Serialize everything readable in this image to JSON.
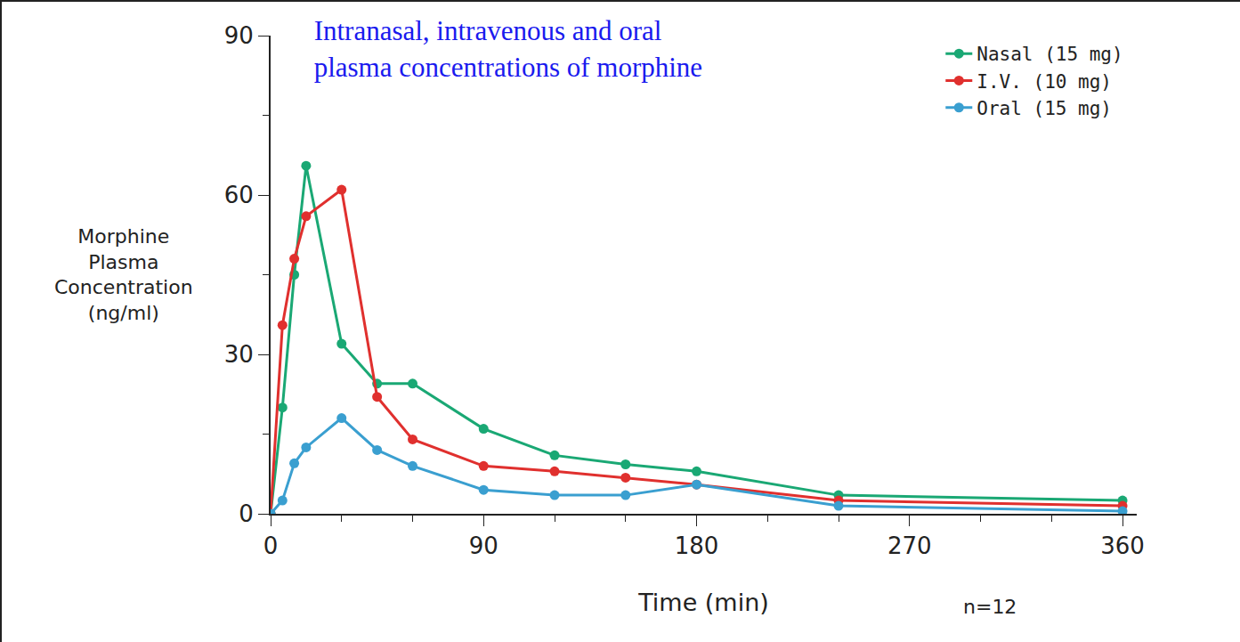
{
  "chart_data": {
    "type": "line",
    "title": "Intranasal, intravenous and oral\nplasma concentrations of morphine",
    "x_label": "Time (min)",
    "y_label": "Morphine\nPlasma\nConcentration\n(ng/ml)",
    "annotations": [
      {
        "text": "n=12"
      }
    ],
    "xlim": [
      0,
      366
    ],
    "xticks": [
      0,
      90,
      180,
      270,
      360
    ],
    "ylim": [
      0,
      90
    ],
    "yticks": [
      0,
      30,
      60,
      90
    ],
    "grid": false,
    "legend": "top right",
    "marker": "circle",
    "x": [
      0,
      5,
      10,
      15,
      30,
      45,
      60,
      90,
      120,
      150,
      180,
      240,
      360
    ],
    "series": [
      {
        "name": "Nasal (15 mg)",
        "color": "#1aa874",
        "values": [
          0,
          20,
          45,
          65.5,
          32,
          24.5,
          24.5,
          16,
          11,
          9.3,
          8,
          3.5,
          2.5
        ]
      },
      {
        "name": "I.V. (10 mg)",
        "color": "#e0302e",
        "values": [
          0,
          35.5,
          48,
          56,
          61,
          22,
          14,
          9,
          8,
          6.8,
          5.5,
          2.5,
          1.5
        ]
      },
      {
        "name": "Oral (15 mg)",
        "color": "#3a9fd0",
        "values": [
          0,
          2.5,
          9.5,
          12.5,
          18,
          12,
          9,
          4.5,
          3.5,
          3.5,
          5.5,
          1.5,
          0.5
        ]
      }
    ]
  }
}
